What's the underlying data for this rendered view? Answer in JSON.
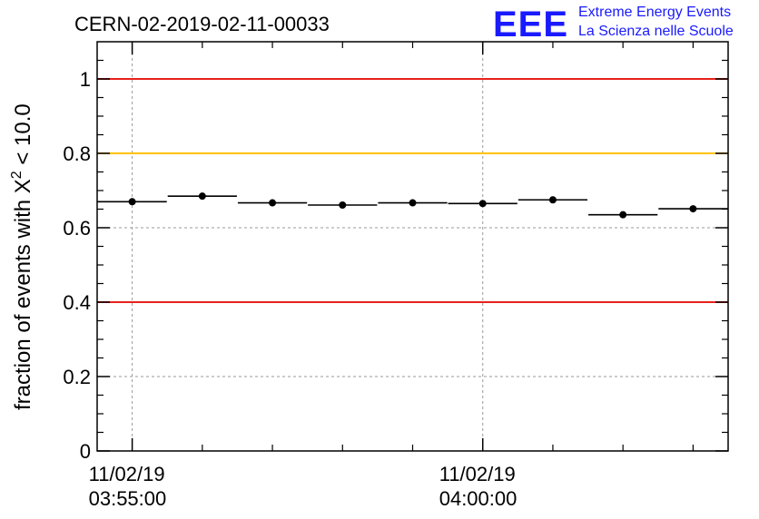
{
  "chart_data": {
    "type": "scatter",
    "title": "CERN-02-2019-02-11-00033",
    "ylabel_main": "fraction of events with X",
    "ylabel_sup": "2",
    "ylabel_tail": " < 10.0",
    "xlabel": "",
    "ylim": [
      0,
      1.1
    ],
    "y_major_ticks": [
      0,
      0.2,
      0.4,
      0.6,
      0.8,
      1
    ],
    "y_tick_labels": [
      "0",
      "0.2",
      "0.4",
      "0.6",
      "0.8",
      "1"
    ],
    "xlim": [
      0,
      9
    ],
    "x_tick_positions": [
      0.5,
      5.5
    ],
    "x_tick_labels": [
      {
        "date": "11/02/19",
        "time": "03:55:00"
      },
      {
        "date": "11/02/19",
        "time": "04:00:00"
      }
    ],
    "x_minor_ticks": [
      1.5,
      2.5,
      3.5,
      4.5,
      6.5,
      7.5,
      8.5
    ],
    "grid": true,
    "reference_lines": [
      {
        "y": 1.0,
        "color": "#e8221c"
      },
      {
        "y": 0.8,
        "color": "#ffc200"
      },
      {
        "y": 0.4,
        "color": "#e8221c"
      }
    ],
    "series": [
      {
        "bins": [
          [
            0,
            1
          ],
          [
            1,
            2
          ],
          [
            2,
            3
          ],
          [
            3,
            4
          ],
          [
            4,
            5
          ],
          [
            5,
            6
          ],
          [
            6,
            7
          ],
          [
            7,
            8
          ],
          [
            8,
            9
          ]
        ],
        "values": [
          0.67,
          0.685,
          0.667,
          0.661,
          0.667,
          0.665,
          0.675,
          0.635,
          0.651
        ]
      }
    ]
  },
  "logo": {
    "mark": "EEE",
    "line1": "Extreme Energy Events",
    "line2": "La Scienza nelle Scuole",
    "color": "#1a1aff"
  }
}
